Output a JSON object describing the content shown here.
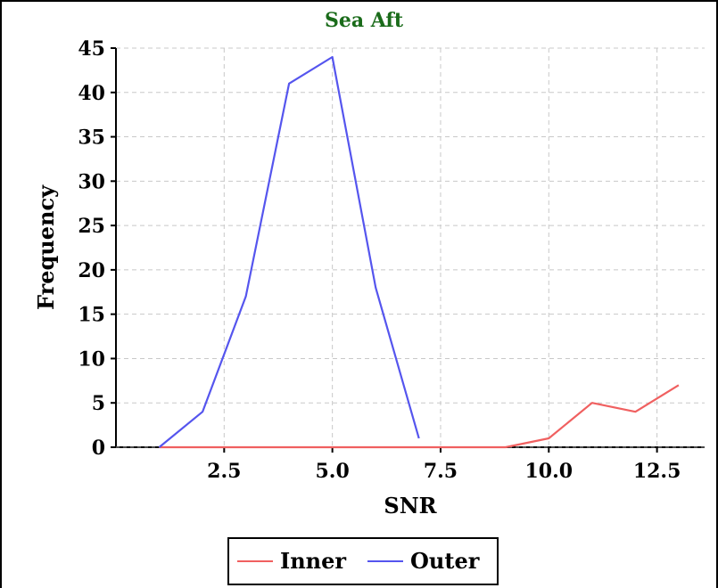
{
  "chart_data": {
    "type": "line",
    "title": "Sea Aft",
    "xlabel": "SNR",
    "ylabel": "Frequency",
    "xlim": [
      0.0,
      13.6
    ],
    "ylim": [
      0,
      45
    ],
    "xticks": [
      2.5,
      5.0,
      7.5,
      10.0,
      12.5
    ],
    "xtick_labels": [
      "2.5",
      "5.0",
      "7.5",
      "10.0",
      "12.5"
    ],
    "yticks": [
      0,
      5,
      10,
      15,
      20,
      25,
      30,
      35,
      40,
      45
    ],
    "ytick_labels": [
      "0",
      "5",
      "10",
      "15",
      "20",
      "25",
      "30",
      "35",
      "40",
      "45"
    ],
    "grid": true,
    "legend_position": "bottom-center",
    "series": [
      {
        "name": "Inner",
        "color": "#f06060",
        "x": [
          1,
          2,
          3,
          4,
          5,
          6,
          7,
          8,
          9,
          10,
          11,
          12,
          13
        ],
        "y": [
          0,
          0,
          0,
          0,
          0,
          0,
          0,
          0,
          0,
          1,
          5,
          4,
          7
        ]
      },
      {
        "name": "Outer",
        "color": "#5555ee",
        "x": [
          1,
          2,
          3,
          4,
          5,
          6,
          7
        ],
        "y": [
          0,
          4,
          17,
          41,
          44,
          18,
          1
        ]
      }
    ],
    "title_color": "#1a6b1a",
    "grid_color": "#c8c8c8"
  }
}
